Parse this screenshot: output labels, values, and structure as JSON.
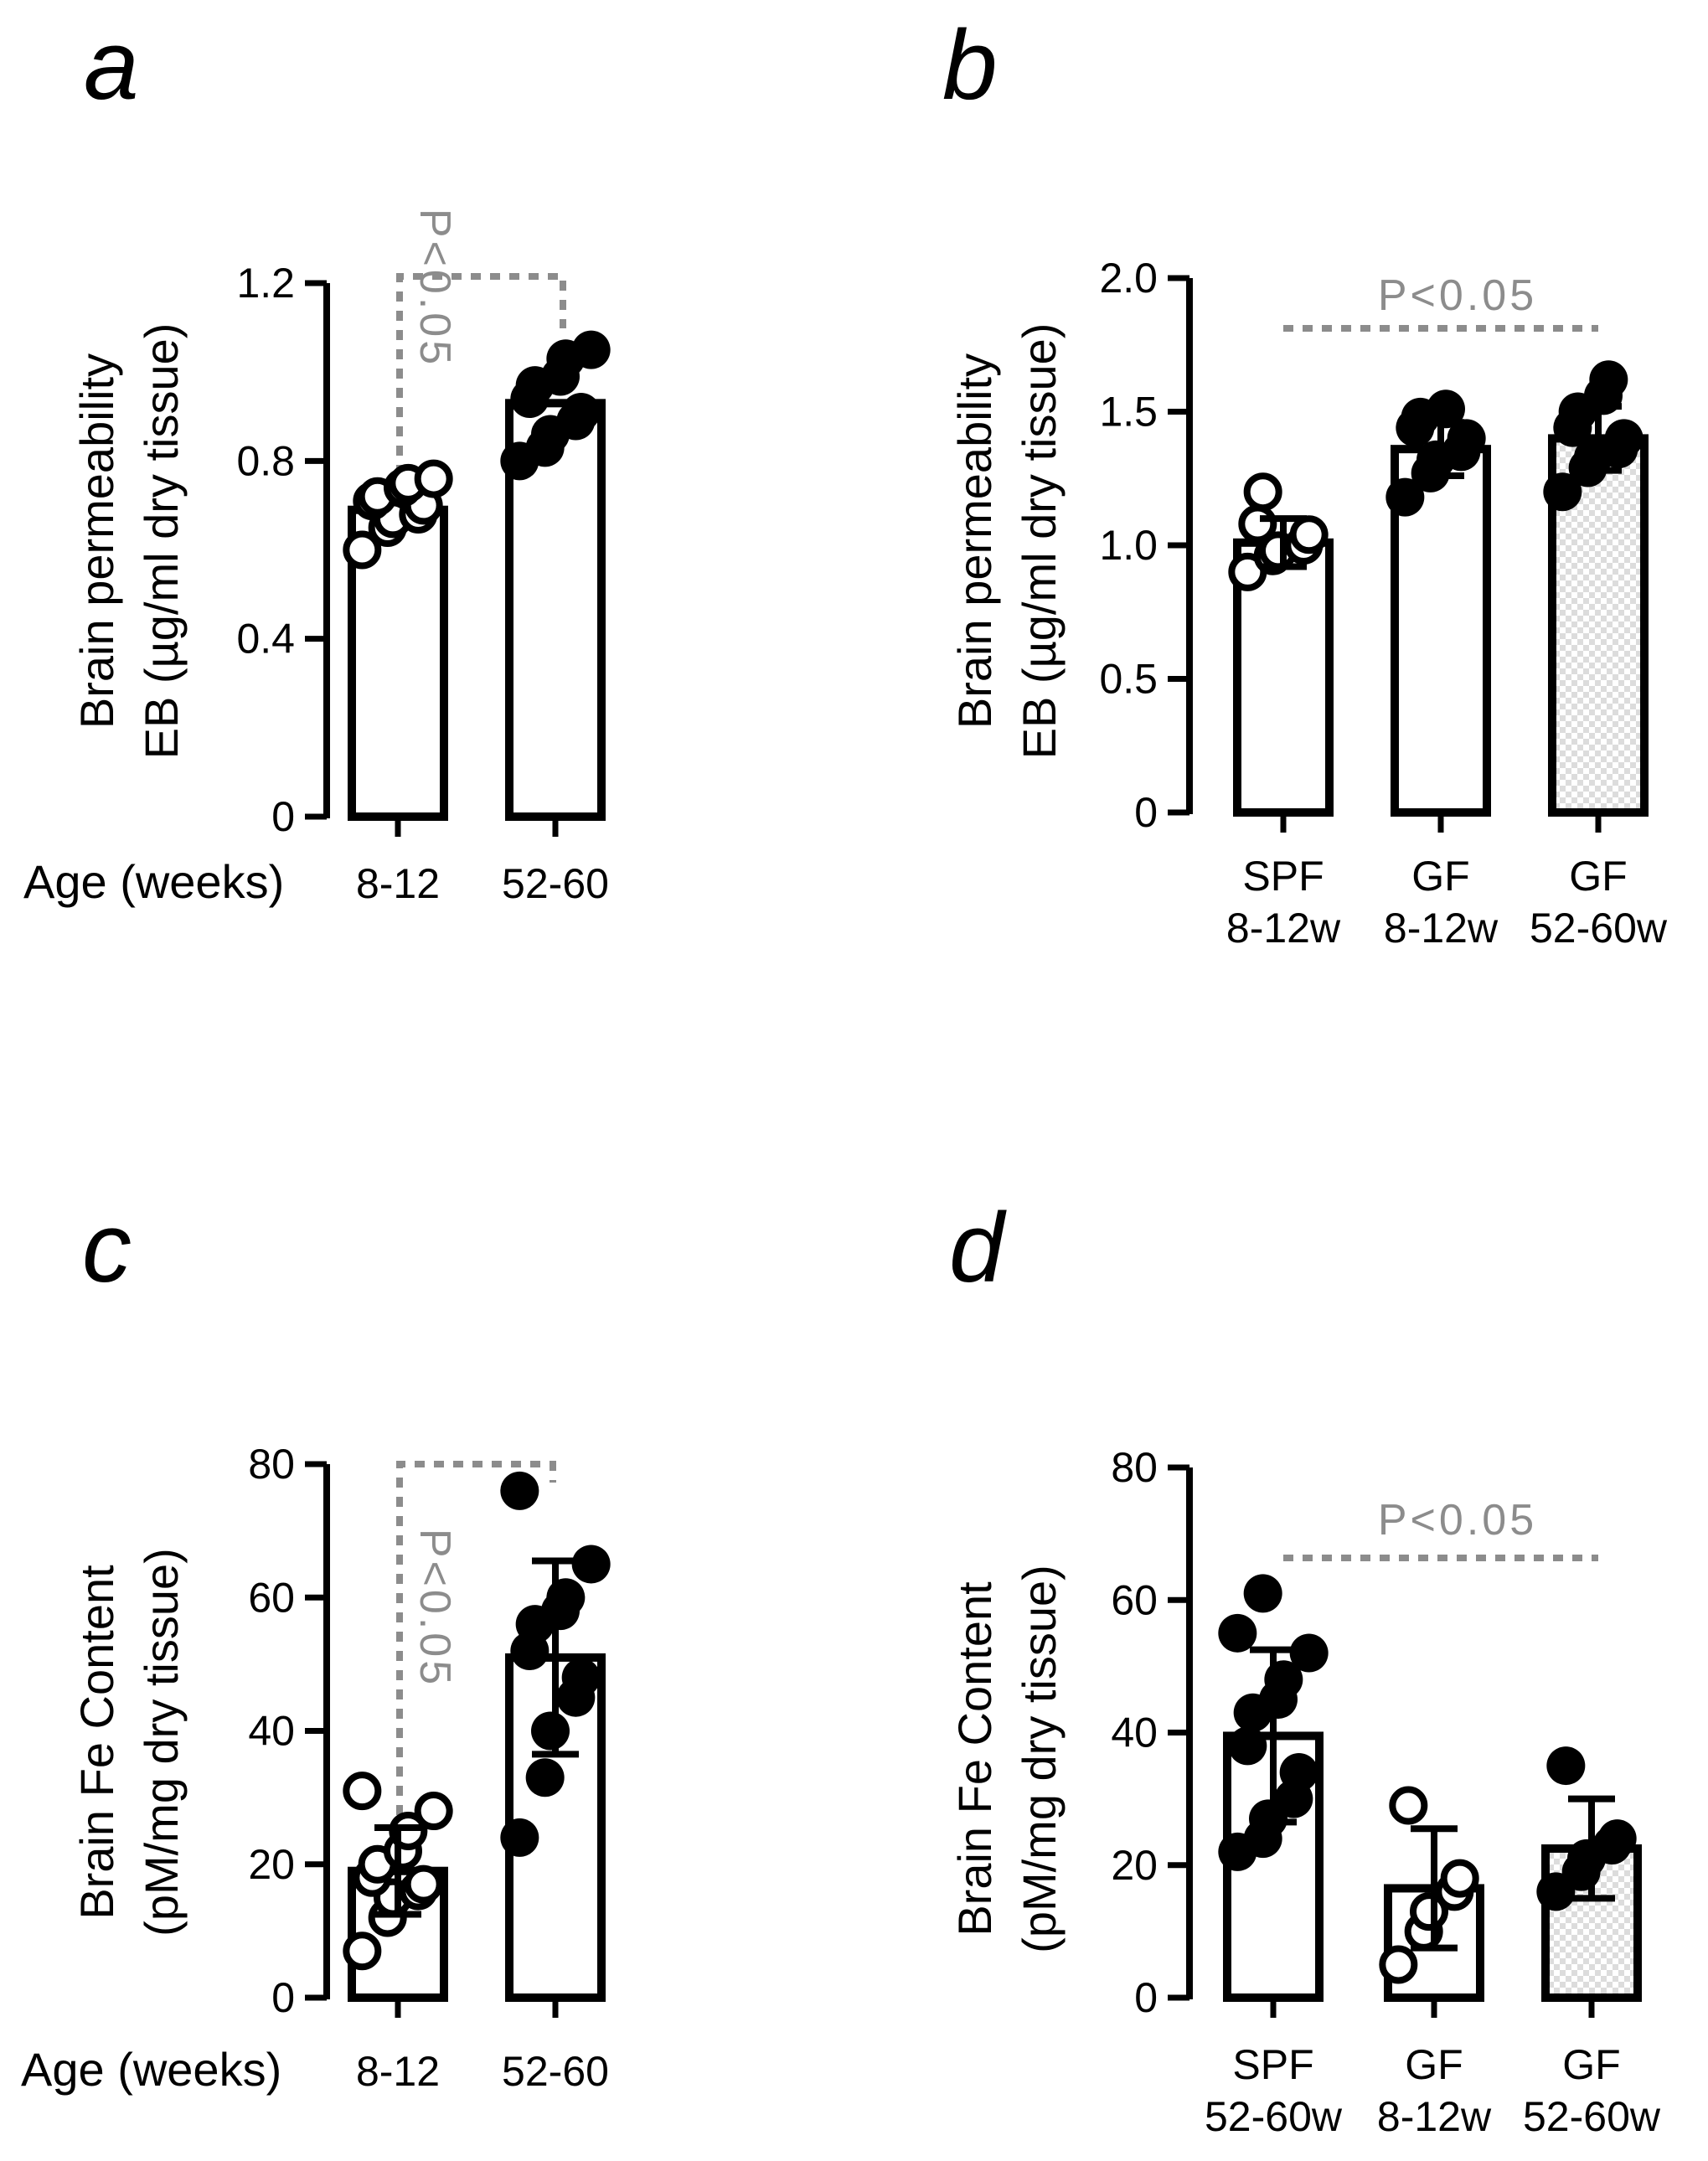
{
  "chart_data": [
    {
      "panel": "a",
      "type": "bar",
      "ylabel_line1": "Brain permeability",
      "ylabel_line2": "EB (µg/ml dry tissue)",
      "xlabel": "Age (weeks)",
      "ylim": [
        0,
        1.2
      ],
      "yticks": [
        "0",
        "0.4",
        "0.8",
        "1.2"
      ],
      "categories": [
        {
          "lines": [
            "8-12"
          ],
          "mean": 0.69,
          "sd": null,
          "fill": "white",
          "marker": "open",
          "points": [
            0.6,
            0.65,
            0.67,
            0.68,
            0.7,
            0.71,
            0.72,
            0.74,
            0.75,
            0.76
          ]
        },
        {
          "lines": [
            "52-60"
          ],
          "mean": 0.93,
          "sd": null,
          "fill": "white",
          "marker": "filled",
          "points": [
            0.8,
            0.83,
            0.86,
            0.89,
            0.91,
            0.94,
            0.97,
            0.99,
            1.03,
            1.05
          ]
        }
      ],
      "significance": {
        "label": "P<0.05",
        "style": "bracket"
      }
    },
    {
      "panel": "b",
      "type": "bar",
      "ylabel_line1": "Brain permeability",
      "ylabel_line2": "EB (µg/ml dry tissue)",
      "xlabel": "",
      "ylim": [
        0,
        2.0
      ],
      "yticks": [
        "0",
        "0.5",
        "1.0",
        "1.5",
        "2.0"
      ],
      "categories": [
        {
          "lines": [
            "SPF",
            "8-12w"
          ],
          "mean": 1.01,
          "sd": 0.09,
          "fill": "white",
          "marker": "open",
          "points": [
            0.9,
            0.96,
            0.98,
            1.0,
            1.04,
            1.08,
            1.2
          ]
        },
        {
          "lines": [
            "GF",
            "8-12w"
          ],
          "mean": 1.36,
          "sd": 0.1,
          "fill": "white",
          "marker": "filled",
          "points": [
            1.18,
            1.27,
            1.32,
            1.35,
            1.4,
            1.44,
            1.48,
            1.51
          ]
        },
        {
          "lines": [
            "GF",
            "52-60w"
          ],
          "mean": 1.4,
          "sd": 0.12,
          "fill": "checker",
          "marker": "filled",
          "points": [
            1.2,
            1.29,
            1.33,
            1.36,
            1.4,
            1.44,
            1.5,
            1.56,
            1.62
          ]
        }
      ],
      "significance": {
        "label": "P<0.05",
        "style": "line"
      }
    },
    {
      "panel": "c",
      "type": "bar",
      "ylabel_line1": "Brain Fe Content",
      "ylabel_line2": "(pM/mg dry tissue)",
      "xlabel": "Age (weeks)",
      "ylim": [
        0,
        80
      ],
      "yticks": [
        "0",
        "20",
        "40",
        "60",
        "80"
      ],
      "categories": [
        {
          "lines": [
            "8-12"
          ],
          "mean": 19,
          "sd": 6.5,
          "fill": "white",
          "marker": "open",
          "points": [
            7,
            12,
            15,
            16,
            17,
            18,
            20,
            22,
            25,
            28,
            31
          ]
        },
        {
          "lines": [
            "52-60"
          ],
          "mean": 51,
          "sd": 14.5,
          "fill": "white",
          "marker": "filled",
          "points": [
            24,
            33,
            40,
            45,
            48,
            52,
            56,
            58,
            60,
            65,
            76
          ]
        }
      ],
      "significance": {
        "label": "P<0.05",
        "style": "bracket"
      }
    },
    {
      "panel": "d",
      "type": "bar",
      "ylabel_line1": "Brain Fe Content",
      "ylabel_line2": "(pM/mg dry tissue)",
      "xlabel": "",
      "ylim": [
        0,
        80
      ],
      "yticks": [
        "0",
        "20",
        "40",
        "60",
        "80"
      ],
      "categories": [
        {
          "lines": [
            "SPF",
            "52-60w"
          ],
          "mean": 39.5,
          "sd": 13,
          "fill": "white",
          "marker": "filled",
          "points": [
            22,
            24,
            27,
            30,
            34,
            38,
            43,
            45,
            48,
            52,
            55,
            61
          ]
        },
        {
          "lines": [
            "GF",
            "8-12w"
          ],
          "mean": 16.5,
          "sd": 9,
          "fill": "white",
          "marker": "open",
          "points": [
            5,
            10,
            13,
            16,
            18,
            29
          ]
        },
        {
          "lines": [
            "GF",
            "52-60w"
          ],
          "mean": 22.5,
          "sd": 7.5,
          "fill": "checker",
          "marker": "filled",
          "points": [
            16,
            19,
            21,
            23,
            24,
            35
          ]
        }
      ],
      "significance": {
        "label": "P<0.05",
        "style": "line"
      }
    }
  ]
}
